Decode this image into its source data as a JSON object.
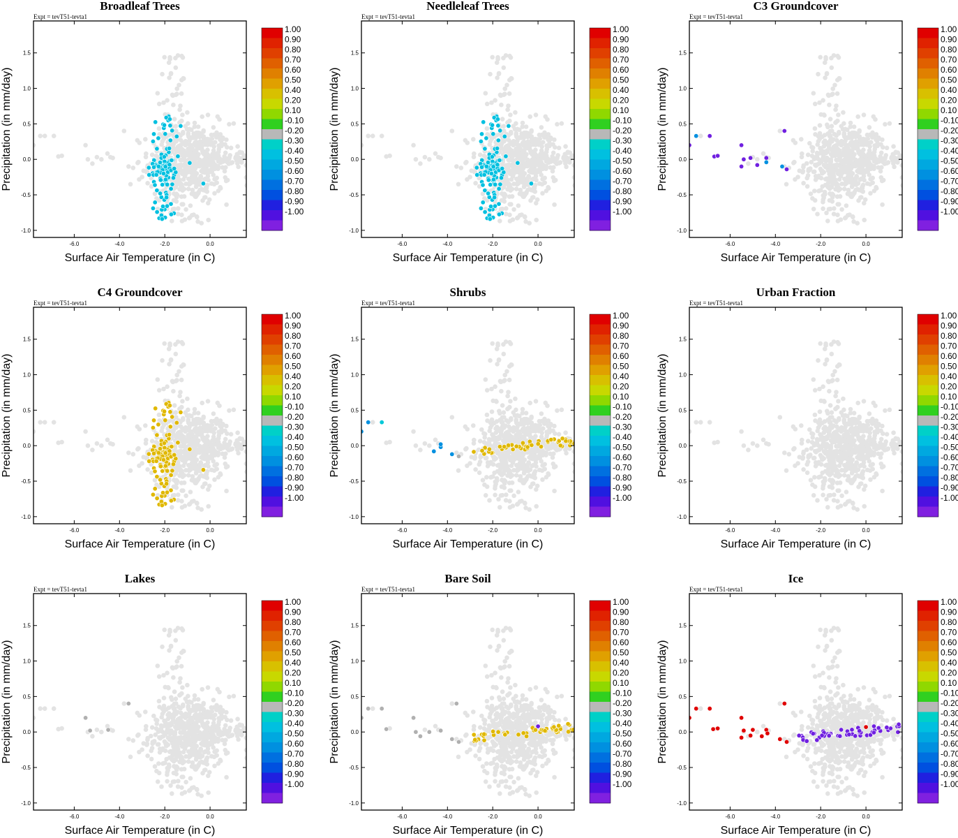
{
  "figure": {
    "expt_label": "Expt = tevT51-tevta1",
    "xlabel": "Surface Air Temperature (in C)",
    "ylabel": "Precipitation (in mm/day)",
    "background_point_color": "#e3e3e3",
    "x_ticks": [
      {
        "v": -6.0,
        "label": "-6.0"
      },
      {
        "v": -4.0,
        "label": "-4.0"
      },
      {
        "v": -2.0,
        "label": "-2.0"
      },
      {
        "v": 0.0,
        "label": "0.0"
      }
    ],
    "y_ticks": [
      {
        "v": 1.5,
        "label": "1.5"
      },
      {
        "v": 1.0,
        "label": "1.0"
      },
      {
        "v": 0.5,
        "label": "0.5"
      },
      {
        "v": 0.0,
        "label": "0.0"
      },
      {
        "v": -0.5,
        "label": "-0.5"
      },
      {
        "v": -1.0,
        "label": "-1.0"
      }
    ],
    "colorbar": {
      "labels": [
        "1.00",
        "0.90",
        "0.80",
        "0.70",
        "0.60",
        "0.50",
        "0.40",
        "0.20",
        "0.10",
        "-0.10",
        "-0.20",
        "-0.30",
        "-0.40",
        "-0.50",
        "-0.60",
        "-0.70",
        "-0.80",
        "-0.90",
        "-1.00"
      ],
      "colors": [
        "#e00000",
        "#e02200",
        "#e04000",
        "#e06000",
        "#e08000",
        "#e0a000",
        "#d8c000",
        "#c8d800",
        "#90d800",
        "#30d020",
        "#b8b8b8",
        "#00d0c8",
        "#00c0e0",
        "#00a8e0",
        "#0090e0",
        "#0070e0",
        "#0050e0",
        "#2020e0",
        "#5010e0",
        "#8020e0"
      ]
    }
  },
  "chart_data": [
    {
      "type": "scatter",
      "title": "Broadleaf Trees",
      "xlim": [
        -7.8,
        1.6
      ],
      "ylim": [
        -1.1,
        1.95
      ],
      "highlights": [
        {
          "color": "#00c0e0",
          "shape": "cluster",
          "x": [
            -2.75,
            -1.4
          ],
          "y": [
            -0.92,
            0.68
          ]
        }
      ]
    },
    {
      "type": "scatter",
      "title": "Needleleaf Trees",
      "xlim": [
        -7.8,
        1.6
      ],
      "ylim": [
        -1.1,
        1.95
      ],
      "highlights": [
        {
          "color": "#00c0e0",
          "shape": "cluster",
          "x": [
            -2.75,
            -1.4
          ],
          "y": [
            -0.92,
            0.68
          ]
        }
      ]
    },
    {
      "type": "scatter",
      "title": "C3 Groundcover",
      "xlim": [
        -7.8,
        1.6
      ],
      "ylim": [
        -1.1,
        1.95
      ],
      "highlights": [
        {
          "color": "#7020e0",
          "points": [
            [
              -7.8,
              0.2
            ],
            [
              -7.5,
              0.33
            ],
            [
              -6.9,
              0.33
            ],
            [
              -6.7,
              0.04
            ],
            [
              -6.55,
              0.05
            ],
            [
              -5.5,
              0.2
            ],
            [
              -5.5,
              -0.1
            ],
            [
              -5.4,
              0.0
            ],
            [
              -5.1,
              0.02
            ],
            [
              -4.8,
              -0.08
            ],
            [
              -4.4,
              0.02
            ],
            [
              -3.6,
              0.4
            ],
            [
              -3.5,
              -0.14
            ]
          ]
        },
        {
          "color": "#0090e0",
          "points": [
            [
              -7.5,
              0.33
            ],
            [
              -4.4,
              -0.04
            ],
            [
              -3.7,
              -0.1
            ]
          ]
        }
      ]
    },
    {
      "type": "scatter",
      "title": "C4 Groundcover",
      "xlim": [
        -7.8,
        1.6
      ],
      "ylim": [
        -1.1,
        1.95
      ],
      "highlights": [
        {
          "color": "#e0b800",
          "shape": "cluster",
          "x": [
            -2.75,
            -1.4
          ],
          "y": [
            -0.92,
            0.65
          ]
        }
      ]
    },
    {
      "type": "scatter",
      "title": "Shrubs",
      "xlim": [
        -7.8,
        1.6
      ],
      "ylim": [
        -1.1,
        1.95
      ],
      "highlights": [
        {
          "color": "#0090e0",
          "points": [
            [
              -7.8,
              0.2
            ],
            [
              -7.5,
              0.33
            ],
            [
              -4.6,
              -0.08
            ],
            [
              -4.3,
              -0.02
            ],
            [
              -4.3,
              0.02
            ],
            [
              -3.8,
              -0.12
            ]
          ]
        },
        {
          "color": "#00c8d8",
          "points": [
            [
              -6.9,
              0.33
            ]
          ]
        },
        {
          "color": "#b0b0b0",
          "points": [
            [
              -3.5,
              -0.15
            ]
          ]
        },
        {
          "color": "#e0b800",
          "shape": "strip",
          "x": [
            -2.9,
            1.6
          ],
          "y": [
            -0.08,
            0.16
          ]
        }
      ]
    },
    {
      "type": "scatter",
      "title": "Urban Fraction",
      "xlim": [
        -7.8,
        1.6
      ],
      "ylim": [
        -1.1,
        1.95
      ],
      "highlights": []
    },
    {
      "type": "scatter",
      "title": "Lakes",
      "xlim": [
        -7.8,
        1.6
      ],
      "ylim": [
        -1.1,
        1.95
      ],
      "highlights": [
        {
          "color": "#b0b0b0",
          "points": [
            [
              -5.5,
              0.2
            ],
            [
              -5.3,
              0.02
            ],
            [
              -4.5,
              0.03
            ],
            [
              -3.6,
              0.4
            ]
          ]
        }
      ]
    },
    {
      "type": "scatter",
      "title": "Bare Soil",
      "xlim": [
        -7.8,
        1.6
      ],
      "ylim": [
        -1.1,
        1.95
      ],
      "highlights": [
        {
          "color": "#b0b0b0",
          "points": [
            [
              -7.8,
              0.2
            ],
            [
              -7.5,
              0.33
            ],
            [
              -6.9,
              0.33
            ],
            [
              -6.7,
              0.04
            ],
            [
              -5.5,
              0.2
            ],
            [
              -5.4,
              0.0
            ],
            [
              -5.2,
              -0.06
            ],
            [
              -4.8,
              0.0
            ],
            [
              -4.3,
              0.02
            ],
            [
              -3.6,
              0.4
            ],
            [
              -3.8,
              -0.1
            ],
            [
              -3.5,
              -0.14
            ]
          ]
        },
        {
          "color": "#e0b800",
          "shape": "strip",
          "x": [
            -2.9,
            1.6
          ],
          "y": [
            -0.08,
            0.16
          ]
        },
        {
          "color": "#7020e0",
          "points": [
            [
              0.0,
              0.08
            ]
          ]
        }
      ]
    },
    {
      "type": "scatter",
      "title": "Ice",
      "xlim": [
        -7.8,
        1.6
      ],
      "ylim": [
        -1.1,
        1.95
      ],
      "highlights": [
        {
          "color": "#e00000",
          "points": [
            [
              -7.8,
              0.2
            ],
            [
              -7.5,
              0.33
            ],
            [
              -6.9,
              0.33
            ],
            [
              -6.75,
              0.04
            ],
            [
              -6.55,
              0.05
            ],
            [
              -5.5,
              0.2
            ],
            [
              -5.5,
              -0.08
            ],
            [
              -5.4,
              0.02
            ],
            [
              -5.1,
              -0.05
            ],
            [
              -5.0,
              0.03
            ],
            [
              -4.6,
              -0.06
            ],
            [
              -4.4,
              0.03
            ],
            [
              -4.35,
              -0.02
            ],
            [
              -3.6,
              0.4
            ],
            [
              -3.8,
              -0.1
            ],
            [
              -3.5,
              -0.14
            ],
            [
              0.0,
              0.07
            ]
          ]
        },
        {
          "color": "#7020e0",
          "shape": "strip",
          "x": [
            -3.0,
            1.6
          ],
          "y": [
            -0.08,
            0.15
          ]
        }
      ]
    }
  ]
}
